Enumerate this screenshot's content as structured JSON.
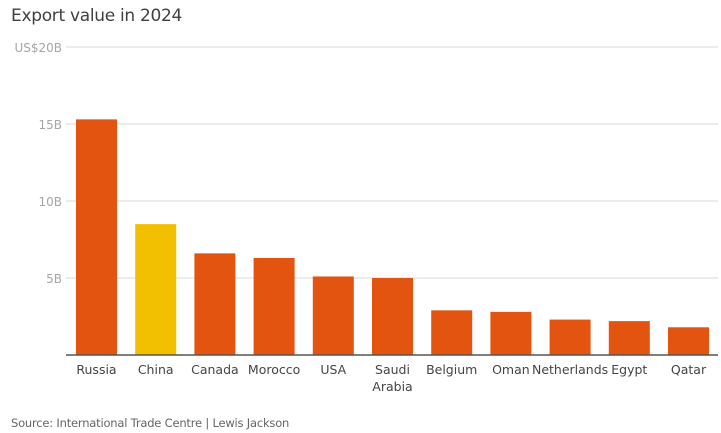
{
  "chart_data": {
    "type": "bar",
    "title": "Export value in 2024",
    "source": "Source: International Trade Centre | Lewis Jackson",
    "categories": [
      "Russia",
      "China",
      "Canada",
      "Morocco",
      "USA",
      "Saudi Arabia",
      "Belgium",
      "Oman",
      "Netherlands",
      "Egypt",
      "Qatar"
    ],
    "values": [
      15.3,
      8.5,
      6.6,
      6.3,
      5.1,
      5.0,
      2.9,
      2.8,
      2.3,
      2.2,
      1.8
    ],
    "unit": "US$ billions",
    "yticks": [
      {
        "value": 5,
        "label": "5B"
      },
      {
        "value": 10,
        "label": "10B"
      },
      {
        "value": 15,
        "label": "15B"
      },
      {
        "value": 20,
        "label": "US$20B"
      }
    ],
    "ylim": [
      0,
      20
    ],
    "grid": true,
    "highlight": "China",
    "colors": {
      "default": "#e2540f",
      "highlight": "#f2c000",
      "grid": "#d9d9d9",
      "axis": "#555555"
    }
  }
}
